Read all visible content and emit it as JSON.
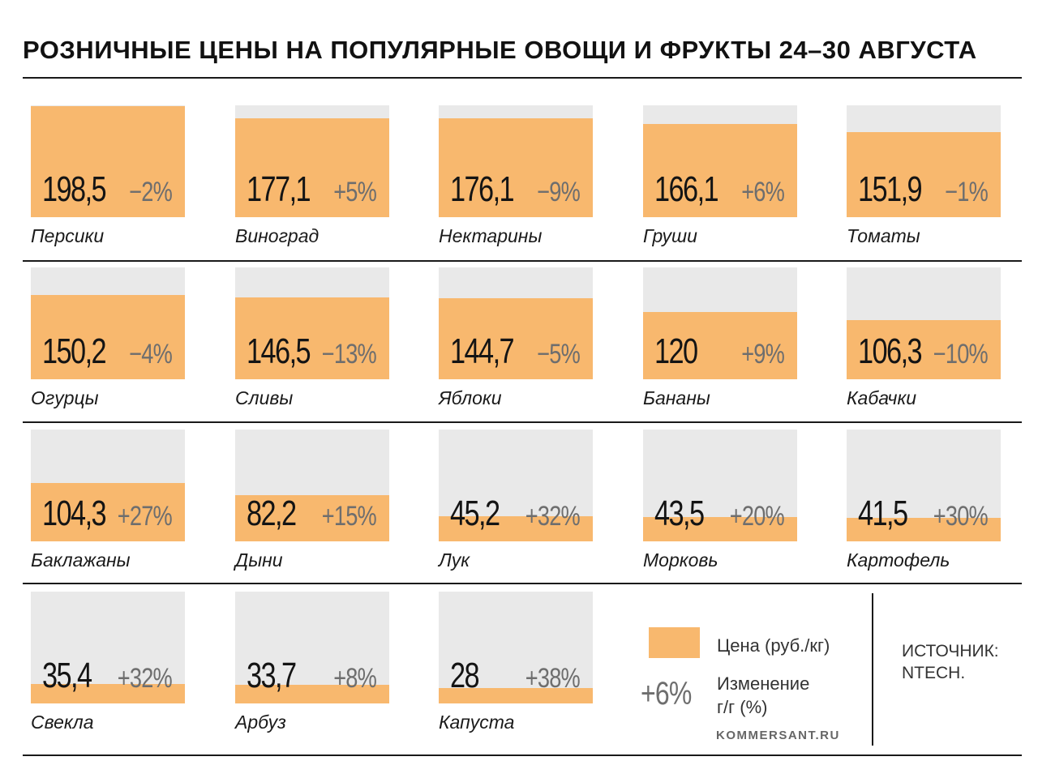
{
  "title": "РОЗНИЧНЫЕ ЦЕНЫ НА ПОПУЛЯРНЫЕ ОВОЩИ И ФРУКТЫ 24–30 АВГУСТА",
  "colors": {
    "price_fill": "#f8b86e",
    "bar_background": "#e9e9e9",
    "change_text": "#6e6e6e"
  },
  "legend": {
    "price_label": "Цена (руб./кг)",
    "change_example": "+6%",
    "change_label_line1": "Изменение",
    "change_label_line2": "г/г (%)"
  },
  "site": "KOMMERSANT.RU",
  "source": {
    "line1": "ИСТОЧНИК:",
    "line2": "NTECH."
  },
  "chart_data": {
    "type": "bar",
    "title": "РОЗНИЧНЫЕ ЦЕНЫ НА ПОПУЛЯРНЫЕ ОВОЩИ И ФРУКТЫ 24–30 АВГУСТА",
    "ylim": [
      0,
      200
    ],
    "items": [
      {
        "name": "Персики",
        "price": 198.5,
        "price_label": "198,5",
        "change_label": "−2%"
      },
      {
        "name": "Виноград",
        "price": 177.1,
        "price_label": "177,1",
        "change_label": "+5%"
      },
      {
        "name": "Нектарины",
        "price": 176.1,
        "price_label": "176,1",
        "change_label": "−9%"
      },
      {
        "name": "Груши",
        "price": 166.1,
        "price_label": "166,1",
        "change_label": "+6%"
      },
      {
        "name": "Томаты",
        "price": 151.9,
        "price_label": "151,9",
        "change_label": "−1%"
      },
      {
        "name": "Огурцы",
        "price": 150.2,
        "price_label": "150,2",
        "change_label": "−4%"
      },
      {
        "name": "Сливы",
        "price": 146.5,
        "price_label": "146,5",
        "change_label": "−13%"
      },
      {
        "name": "Яблоки",
        "price": 144.7,
        "price_label": "144,7",
        "change_label": "−5%"
      },
      {
        "name": "Бананы",
        "price": 120,
        "price_label": "120",
        "change_label": "+9%"
      },
      {
        "name": "Кабачки",
        "price": 106.3,
        "price_label": "106,3",
        "change_label": "−10%"
      },
      {
        "name": "Баклажаны",
        "price": 104.3,
        "price_label": "104,3",
        "change_label": "+27%"
      },
      {
        "name": "Дыни",
        "price": 82.2,
        "price_label": "82,2",
        "change_label": "+15%"
      },
      {
        "name": "Лук",
        "price": 45.2,
        "price_label": "45,2",
        "change_label": "+32%"
      },
      {
        "name": "Морковь",
        "price": 43.5,
        "price_label": "43,5",
        "change_label": "+20%"
      },
      {
        "name": "Картофель",
        "price": 41.5,
        "price_label": "41,5",
        "change_label": "+30%"
      },
      {
        "name": "Свекла",
        "price": 35.4,
        "price_label": "35,4",
        "change_label": "+32%"
      },
      {
        "name": "Арбуз",
        "price": 33.7,
        "price_label": "33,7",
        "change_label": "+8%"
      },
      {
        "name": "Капуста",
        "price": 28,
        "price_label": "28",
        "change_label": "+38%"
      }
    ]
  }
}
